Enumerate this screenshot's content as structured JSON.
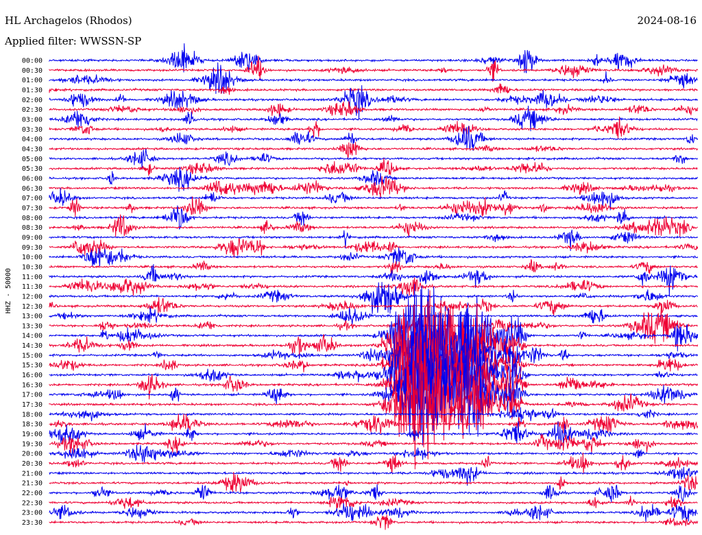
{
  "header": {
    "station": "HL Archagelos (Rhodos)",
    "date": "2024-08-16",
    "filter": "Applied filter: WWSSN-SP"
  },
  "chart_data": {
    "type": "helicorder",
    "ylabel": "HHZ - 50000",
    "row_labels": [
      "00:00",
      "00:30",
      "01:00",
      "01:30",
      "02:00",
      "02:30",
      "03:00",
      "03:30",
      "04:00",
      "04:30",
      "05:00",
      "05:30",
      "06:00",
      "06:30",
      "07:00",
      "07:30",
      "08:00",
      "08:30",
      "09:00",
      "09:30",
      "10:00",
      "10:30",
      "11:00",
      "11:30",
      "12:00",
      "12:30",
      "13:00",
      "13:30",
      "14:00",
      "14:30",
      "15:00",
      "15:30",
      "16:00",
      "16:30",
      "17:00",
      "17:30",
      "18:00",
      "18:30",
      "19:00",
      "19:30",
      "20:00",
      "20:30",
      "21:00",
      "21:30",
      "22:00",
      "22:30",
      "23:00",
      "23:30"
    ],
    "colors": [
      "#0000ee",
      "#ee0033"
    ],
    "major_event": {
      "rows": [
        "14:00",
        "14:30",
        "15:00",
        "15:30",
        "16:00",
        "16:30",
        "17:00",
        "17:30"
      ]
    }
  }
}
